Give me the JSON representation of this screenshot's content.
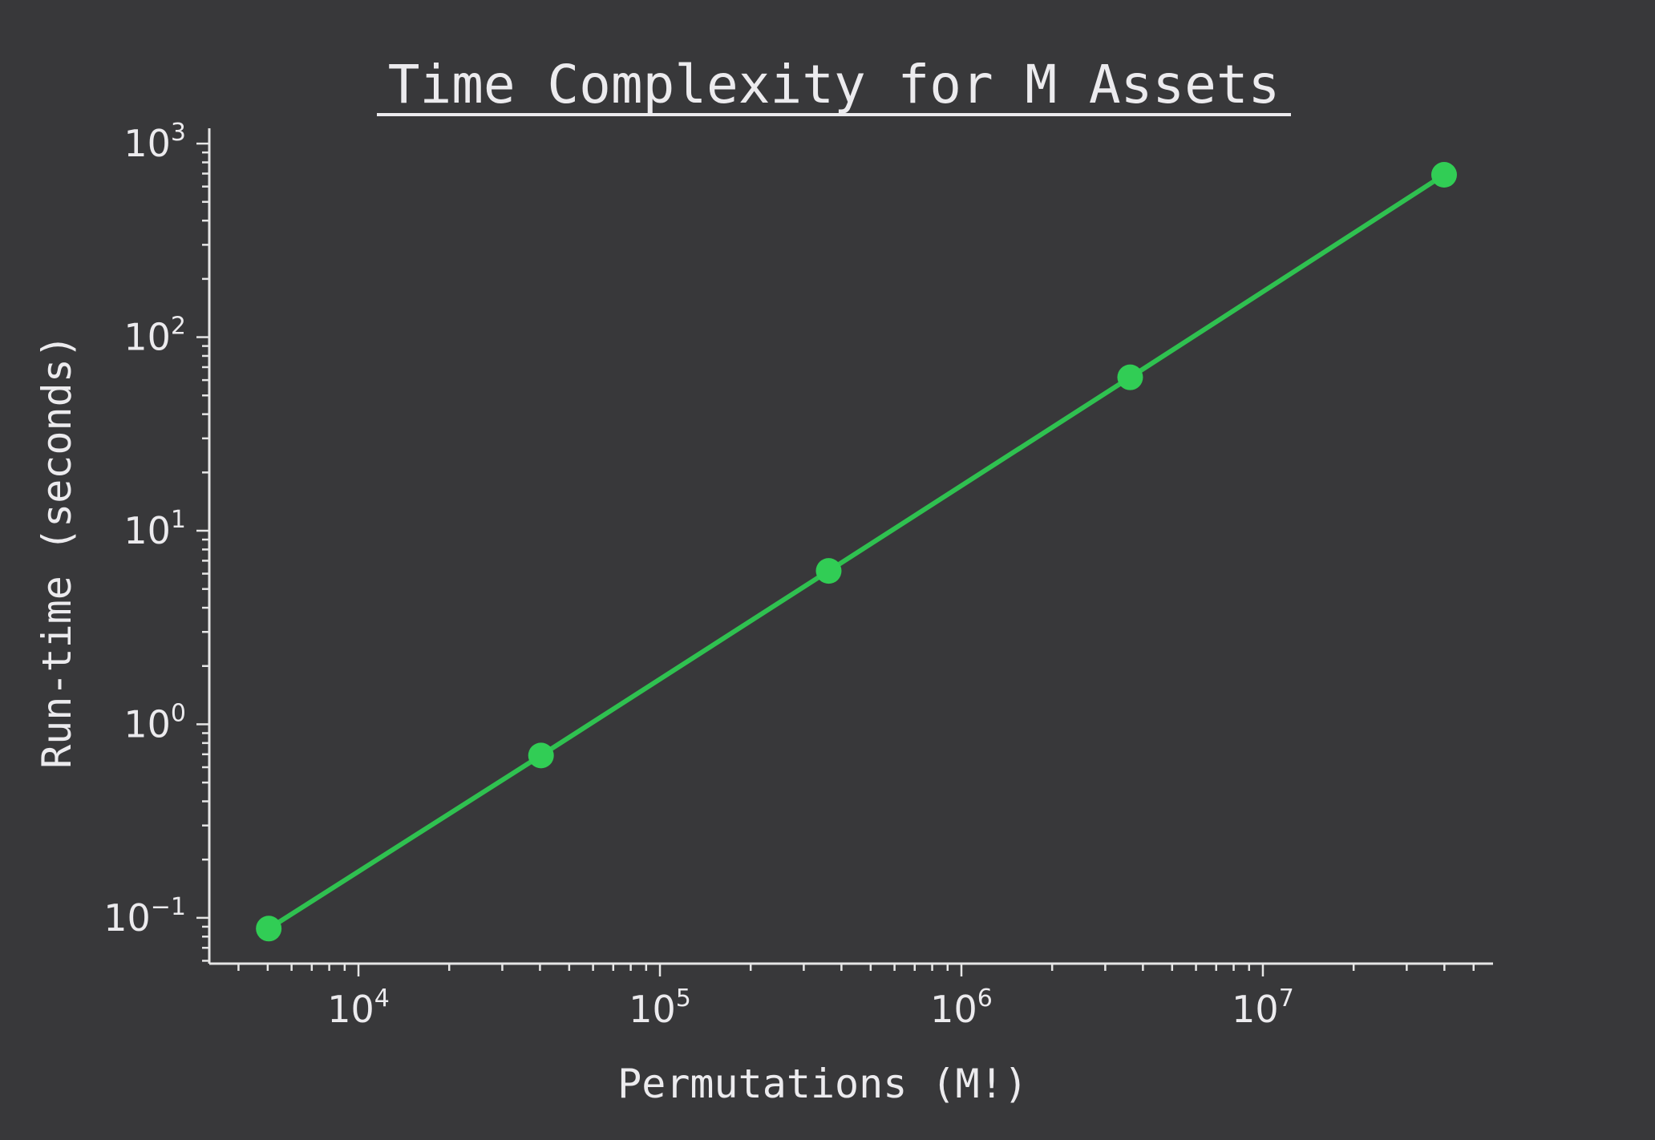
{
  "chart_data": {
    "type": "line",
    "title": "Time Complexity for M Assets",
    "xlabel": "Permutations (M!)",
    "ylabel": "Run-time (seconds)",
    "xscale": "log",
    "yscale": "log",
    "xlim": [
      3200,
      58000000
    ],
    "ylim": [
      0.058,
      1200
    ],
    "x_ticks": [
      {
        "base": "10",
        "exp": "4",
        "value": 10000
      },
      {
        "base": "10",
        "exp": "5",
        "value": 100000
      },
      {
        "base": "10",
        "exp": "6",
        "value": 1000000
      },
      {
        "base": "10",
        "exp": "7",
        "value": 10000000
      }
    ],
    "y_ticks": [
      {
        "base": "10",
        "exp": "−1",
        "value": 0.1
      },
      {
        "base": "10",
        "exp": "0",
        "value": 1
      },
      {
        "base": "10",
        "exp": "1",
        "value": 10
      },
      {
        "base": "10",
        "exp": "2",
        "value": 100
      },
      {
        "base": "10",
        "exp": "3",
        "value": 1000
      }
    ],
    "series": [
      {
        "x": [
          5040,
          40320,
          362880,
          3628800,
          39916800
        ],
        "y": [
          0.088,
          0.69,
          6.2,
          62,
          690
        ]
      }
    ],
    "grid": false,
    "colors": {
      "background": "#38383a",
      "line": "#2fc150",
      "marker": "#31cd55",
      "text": "#ecebee",
      "axis": "#e6e6e6"
    }
  }
}
